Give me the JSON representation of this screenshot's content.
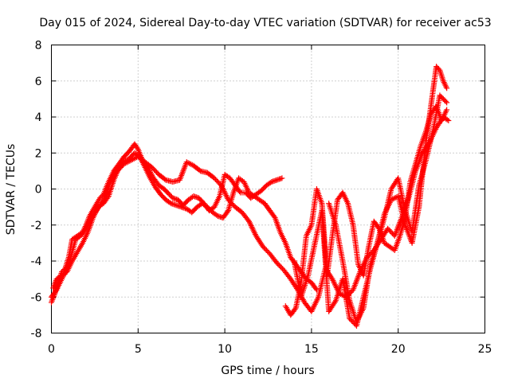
{
  "chart_data": {
    "type": "scatter",
    "title": "Day 015 of 2024, Sidereal Day-to-day VTEC variation (SDTVAR) for receiver ac53",
    "xlabel": "GPS time / hours",
    "ylabel": "SDTVAR / TECUs",
    "xlim": [
      0,
      25
    ],
    "ylim": [
      -8,
      8
    ],
    "x_ticks": [
      "0",
      "5",
      "10",
      "15",
      "20",
      "25"
    ],
    "y_ticks": [
      "8",
      "6",
      "4",
      "2",
      "0",
      "-2",
      "-4",
      "-6",
      "-8"
    ],
    "grid": true,
    "marker": "+",
    "color": "#ff0000",
    "series": [
      {
        "x": [
          0.0,
          0.2,
          0.4,
          0.6,
          0.8,
          1.0,
          1.2,
          1.5,
          1.8,
          2.0,
          2.2,
          2.5,
          2.8,
          3.0,
          3.3,
          3.6,
          3.9,
          4.2,
          4.5,
          4.8,
          5.0,
          5.3,
          5.6,
          5.9,
          6.2,
          6.5,
          6.8,
          7.0,
          7.3,
          7.6,
          7.9,
          8.2,
          8.5,
          8.8,
          9.1,
          9.4,
          9.7,
          10.0,
          10.3,
          10.6,
          10.9,
          11.2,
          11.5,
          11.8,
          12.1,
          12.4,
          12.7,
          13.0,
          13.3
        ],
        "y": [
          -6.3,
          -5.8,
          -5.2,
          -4.6,
          -4.4,
          -3.8,
          -2.8,
          -2.6,
          -2.4,
          -2.0,
          -1.5,
          -1.0,
          -0.5,
          -0.3,
          0.4,
          1.0,
          1.4,
          1.8,
          2.1,
          2.5,
          2.2,
          1.5,
          1.1,
          0.6,
          0.2,
          0.0,
          -0.3,
          -0.5,
          -0.6,
          -0.9,
          -0.6,
          -0.4,
          -0.5,
          -0.8,
          -1.2,
          -1.0,
          -0.4,
          0.8,
          0.6,
          0.2,
          -0.2,
          -0.2,
          -0.5,
          -0.3,
          -0.1,
          0.2,
          0.4,
          0.5,
          0.6
        ]
      },
      {
        "x": [
          0.1,
          0.3,
          0.6,
          0.9,
          1.2,
          1.5,
          1.8,
          2.1,
          2.4,
          2.7,
          3.0,
          3.3,
          3.6,
          3.9,
          4.2,
          4.5,
          4.8,
          5.1,
          5.4,
          5.7,
          6.0,
          6.3,
          6.6,
          6.9,
          7.2,
          7.5,
          7.8,
          8.1,
          8.4,
          8.7,
          9.0,
          9.3,
          9.6,
          9.9,
          10.2,
          10.5,
          10.8,
          11.1,
          11.4,
          11.7,
          12.0,
          12.3,
          12.6,
          12.9,
          13.2,
          13.5,
          13.8,
          14.1,
          14.4,
          14.7,
          15.0,
          15.3
        ],
        "y": [
          -5.5,
          -5.0,
          -4.8,
          -4.6,
          -4.0,
          -3.5,
          -3.0,
          -2.4,
          -1.6,
          -1.0,
          -0.8,
          -0.4,
          0.5,
          1.2,
          1.5,
          1.7,
          2.0,
          1.8,
          1.2,
          0.6,
          0.1,
          -0.3,
          -0.6,
          -0.8,
          -0.9,
          -1.0,
          -1.1,
          -1.3,
          -1.0,
          -0.8,
          -1.0,
          -1.3,
          -1.5,
          -1.6,
          -1.2,
          -0.2,
          0.6,
          0.4,
          -0.2,
          -0.4,
          -0.6,
          -0.8,
          -1.2,
          -1.6,
          -2.4,
          -3.0,
          -3.8,
          -4.2,
          -4.6,
          -5.0,
          -5.2,
          -5.6
        ]
      },
      {
        "x": [
          0.0,
          0.3,
          0.6,
          1.0,
          1.4,
          1.8,
          2.2,
          2.6,
          3.0,
          3.4,
          3.8,
          4.2,
          4.6,
          5.0,
          5.4,
          5.8,
          6.2,
          6.6,
          7.0,
          7.4,
          7.8,
          8.2,
          8.6,
          9.0,
          9.4,
          9.8,
          10.2,
          10.6,
          11.0,
          11.4,
          11.8,
          12.2,
          12.6,
          13.0,
          13.4,
          13.8,
          14.2,
          14.6,
          15.0,
          15.4,
          15.8,
          16.2,
          16.6,
          17.0,
          17.4,
          17.8,
          18.2,
          18.6,
          19.0,
          19.4,
          19.8,
          20.2,
          20.6,
          21.0,
          21.4,
          21.8,
          22.2,
          22.6,
          22.9
        ],
        "y": [
          -6.0,
          -5.6,
          -5.0,
          -4.2,
          -2.8,
          -2.5,
          -1.8,
          -1.2,
          -0.6,
          0.4,
          1.0,
          1.4,
          1.6,
          1.8,
          1.5,
          1.2,
          0.8,
          0.5,
          0.4,
          0.5,
          1.5,
          1.3,
          1.0,
          0.9,
          0.6,
          0.2,
          -0.6,
          -1.0,
          -1.3,
          -1.8,
          -2.6,
          -3.2,
          -3.6,
          -4.1,
          -4.5,
          -5.0,
          -5.6,
          -6.3,
          -6.8,
          -6.0,
          -4.4,
          -5.0,
          -5.8,
          -6.0,
          -5.6,
          -4.6,
          -3.8,
          -3.4,
          -2.8,
          -2.2,
          -2.6,
          -1.6,
          -0.5,
          1.0,
          2.0,
          2.6,
          3.4,
          4.0,
          3.8
        ]
      },
      {
        "x": [
          13.5,
          13.8,
          14.1,
          14.4,
          14.7,
          15.0,
          15.3,
          15.6,
          15.9,
          16.2,
          16.5,
          16.8,
          17.1,
          17.4,
          17.7,
          18.0,
          18.3,
          18.6,
          18.9,
          19.2,
          19.5,
          19.8,
          20.1,
          20.4,
          20.7,
          21.0,
          21.3,
          21.6,
          21.9,
          22.2,
          22.5,
          22.8
        ],
        "y": [
          -6.5,
          -7.0,
          -6.6,
          -5.2,
          -2.6,
          -2.0,
          0.0,
          -0.8,
          -4.8,
          -2.6,
          -0.6,
          -0.2,
          -0.8,
          -2.0,
          -4.2,
          -4.8,
          -3.2,
          -1.8,
          -2.2,
          -3.0,
          -3.2,
          -3.4,
          -2.6,
          -1.6,
          0.4,
          1.4,
          2.4,
          3.2,
          4.2,
          4.6,
          3.8,
          4.4
        ]
      },
      {
        "x": [
          14.0,
          14.4,
          14.8,
          15.2,
          15.6,
          16.0,
          16.4,
          16.8,
          17.2,
          17.6,
          18.0,
          18.4,
          18.8,
          19.2,
          19.6,
          20.0,
          20.4,
          20.8,
          21.2,
          21.6,
          22.0,
          22.2,
          22.4,
          22.6,
          22.8
        ],
        "y": [
          -4.0,
          -6.0,
          -4.8,
          -3.0,
          -1.2,
          -6.8,
          -6.2,
          -5.0,
          -7.2,
          -7.6,
          -6.0,
          -4.4,
          -3.0,
          -1.4,
          -0.6,
          -0.4,
          -2.0,
          -3.0,
          -1.0,
          2.6,
          5.4,
          6.8,
          6.6,
          6.0,
          5.6
        ]
      },
      {
        "x": [
          16.0,
          16.4,
          16.8,
          17.2,
          17.6,
          18.0,
          18.4,
          18.8,
          19.2,
          19.6,
          20.0,
          20.4,
          20.8,
          21.2,
          21.6,
          22.0,
          22.4,
          22.8
        ],
        "y": [
          -0.8,
          -2.0,
          -4.0,
          -6.2,
          -7.4,
          -6.6,
          -4.2,
          -3.0,
          -1.6,
          0.0,
          0.6,
          -1.2,
          -2.4,
          0.2,
          1.6,
          3.2,
          5.2,
          4.8
        ]
      }
    ]
  }
}
